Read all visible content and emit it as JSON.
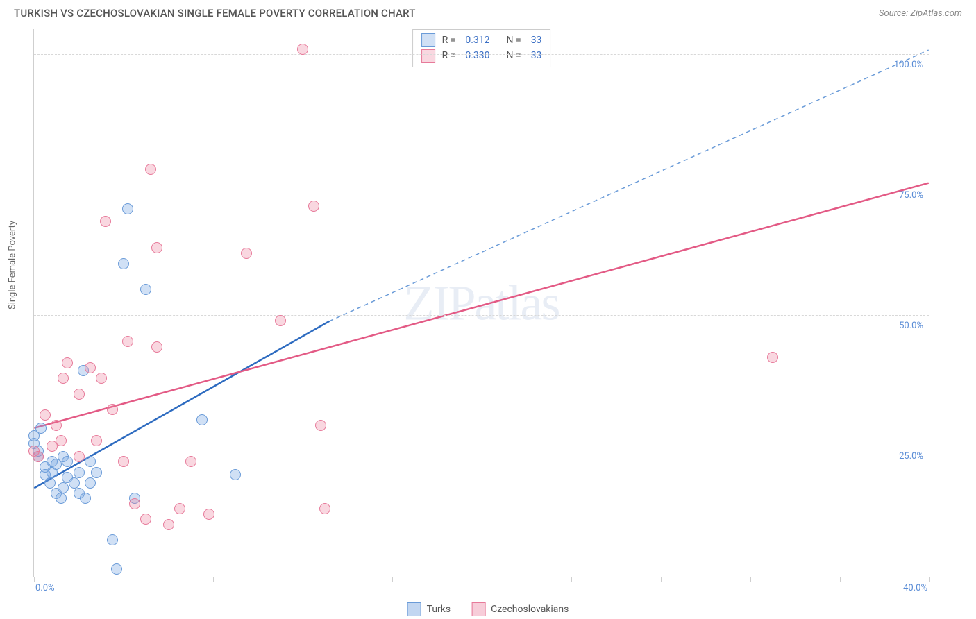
{
  "title": "TURKISH VS CZECHOSLOVAKIAN SINGLE FEMALE POVERTY CORRELATION CHART",
  "source_label": "Source: ZipAtlas.com",
  "watermark": "ZIPatlas",
  "y_axis_title": "Single Female Poverty",
  "chart": {
    "type": "scatter",
    "xlim": [
      0,
      40
    ],
    "ylim": [
      0,
      105
    ],
    "x_ticks": [
      0,
      20,
      40
    ],
    "x_tick_labels": [
      "0.0%",
      "",
      "40.0%"
    ],
    "x_minor_ticks": [
      4,
      8,
      12,
      16,
      24,
      28,
      32,
      36
    ],
    "y_gridlines": [
      25,
      50,
      75,
      100
    ],
    "y_labels": [
      "25.0%",
      "50.0%",
      "75.0%",
      "100.0%"
    ],
    "background_color": "#ffffff",
    "grid_color": "#d8d8d8",
    "axis_color": "#cfcfcf",
    "label_color": "#5b8dd6",
    "label_fontsize": 13,
    "title_fontsize": 15,
    "title_color": "#555555",
    "marker_radius": 8,
    "marker_stroke_width": 1.2,
    "series": [
      {
        "name": "Turks",
        "fill": "rgba(120,165,225,0.35)",
        "stroke": "#6a9bd8",
        "r_value": "0.312",
        "n_value": "33",
        "trend": {
          "solid": {
            "x1": 0,
            "y1": 17,
            "x2": 13.2,
            "y2": 49,
            "color": "#2d6bc0",
            "width": 2.5
          },
          "dashed": {
            "x1": 13.2,
            "y1": 49,
            "x2": 40,
            "y2": 101,
            "color": "#6a9bd8",
            "width": 1.5,
            "dash": "6,5"
          }
        },
        "points": [
          [
            0.0,
            25.5
          ],
          [
            0.0,
            27
          ],
          [
            0.2,
            23
          ],
          [
            0.2,
            24
          ],
          [
            0.3,
            28.5
          ],
          [
            0.5,
            21
          ],
          [
            0.5,
            19.5
          ],
          [
            0.7,
            18
          ],
          [
            0.8,
            22
          ],
          [
            0.8,
            20
          ],
          [
            1.0,
            16
          ],
          [
            1.0,
            21.5
          ],
          [
            1.2,
            15
          ],
          [
            1.3,
            23
          ],
          [
            1.3,
            17
          ],
          [
            1.5,
            19
          ],
          [
            1.5,
            22
          ],
          [
            1.8,
            18
          ],
          [
            2.0,
            16
          ],
          [
            2.0,
            20
          ],
          [
            2.2,
            39.5
          ],
          [
            2.3,
            15
          ],
          [
            2.5,
            18
          ],
          [
            2.5,
            22
          ],
          [
            2.8,
            20
          ],
          [
            3.5,
            7
          ],
          [
            3.7,
            1.5
          ],
          [
            4.0,
            60
          ],
          [
            4.2,
            70.5
          ],
          [
            5.0,
            55
          ],
          [
            7.5,
            30
          ],
          [
            9.0,
            19.5
          ],
          [
            4.5,
            15
          ]
        ]
      },
      {
        "name": "Czechoslovakians",
        "fill": "rgba(235,130,160,0.32)",
        "stroke": "#e77a9a",
        "r_value": "0.330",
        "n_value": "33",
        "trend": {
          "solid": {
            "x1": 0,
            "y1": 28.5,
            "x2": 40,
            "y2": 75.5,
            "color": "#e35a85",
            "width": 2.5
          }
        },
        "points": [
          [
            0.0,
            24
          ],
          [
            0.2,
            23
          ],
          [
            0.5,
            31
          ],
          [
            0.8,
            25
          ],
          [
            1.0,
            29
          ],
          [
            1.2,
            26
          ],
          [
            1.3,
            38
          ],
          [
            1.5,
            41
          ],
          [
            2.0,
            35
          ],
          [
            2.0,
            23
          ],
          [
            2.5,
            40
          ],
          [
            2.8,
            26
          ],
          [
            3.0,
            38
          ],
          [
            3.2,
            68
          ],
          [
            3.5,
            32
          ],
          [
            4.0,
            22
          ],
          [
            4.2,
            45
          ],
          [
            4.5,
            14
          ],
          [
            5.0,
            11
          ],
          [
            5.2,
            78
          ],
          [
            5.5,
            44
          ],
          [
            5.5,
            63
          ],
          [
            6.0,
            10
          ],
          [
            6.5,
            13
          ],
          [
            7.0,
            22
          ],
          [
            7.8,
            12
          ],
          [
            9.5,
            62
          ],
          [
            11.0,
            49
          ],
          [
            12.0,
            101
          ],
          [
            12.5,
            71
          ],
          [
            12.8,
            29
          ],
          [
            13.0,
            13
          ],
          [
            33.0,
            42
          ]
        ]
      }
    ]
  },
  "bottom_legend": [
    {
      "label": "Turks",
      "fill": "rgba(120,165,225,0.45)",
      "stroke": "#6a9bd8"
    },
    {
      "label": "Czechoslovakians",
      "fill": "rgba(235,130,160,0.4)",
      "stroke": "#e77a9a"
    }
  ]
}
